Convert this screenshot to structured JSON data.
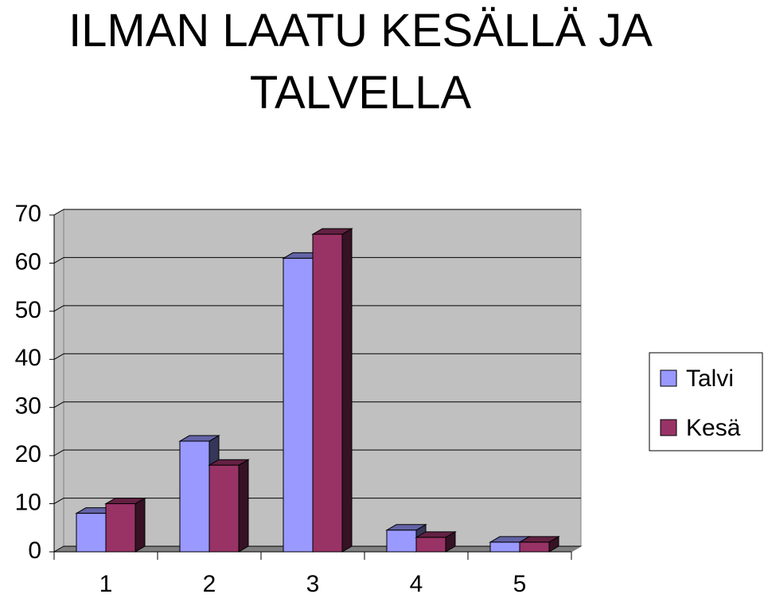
{
  "chart_data": {
    "type": "bar3d",
    "title": "ILMAN LAATU KESÄLLÄ JA TALVELLA",
    "categories": [
      "1",
      "2",
      "3",
      "4",
      "5"
    ],
    "series": [
      {
        "name": "Talvi",
        "color": "#9999ff",
        "values": [
          8,
          23,
          61,
          4.5,
          2
        ]
      },
      {
        "name": "Kesä",
        "color": "#993366",
        "values": [
          10,
          18,
          66,
          3,
          2
        ]
      }
    ],
    "ylim": [
      0,
      70
    ],
    "yticks": [
      0,
      10,
      20,
      30,
      40,
      50,
      60,
      70
    ],
    "grid": true,
    "legend": "right"
  }
}
